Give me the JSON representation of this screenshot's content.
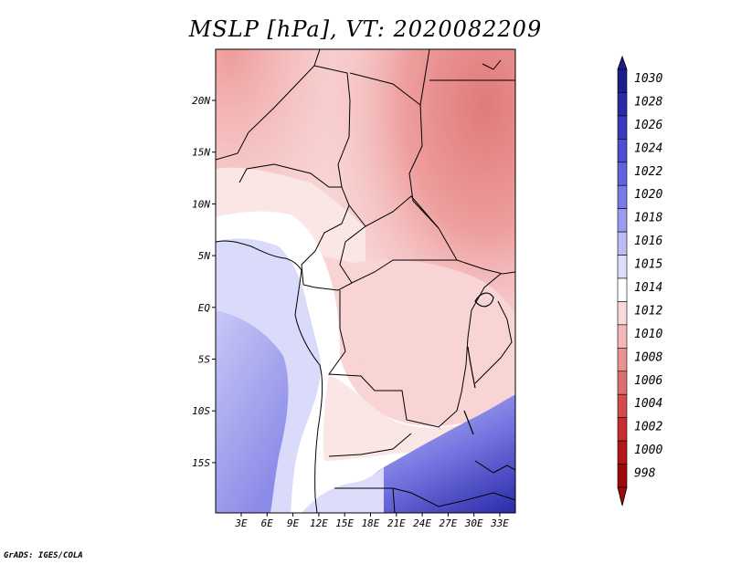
{
  "title": "MSLP [hPa], VT: 2020082209",
  "lat_ticks": [
    "20N",
    "15N",
    "10N",
    "5N",
    "EQ",
    "5S",
    "10S",
    "15S"
  ],
  "lon_ticks": [
    "3E",
    "6E",
    "9E",
    "12E",
    "15E",
    "18E",
    "21E",
    "24E",
    "27E",
    "30E",
    "33E"
  ],
  "colorbar": {
    "levels": [
      "1030",
      "1028",
      "1026",
      "1024",
      "1022",
      "1020",
      "1018",
      "1016",
      "1015",
      "1014",
      "1012",
      "1010",
      "1008",
      "1006",
      "1004",
      "1002",
      "1000",
      "998"
    ],
    "colors": [
      "#1c1c8c",
      "#2b2ba5",
      "#3a3abd",
      "#4e4ed0",
      "#6262dc",
      "#7a7ae6",
      "#9a9aee",
      "#bcbcf4",
      "#dcdcfa",
      "#ffffff",
      "#f9d9d9",
      "#f4b6b6",
      "#ea9292",
      "#df6f6f",
      "#d44b4b",
      "#c62f2f",
      "#b21818",
      "#9e0a0a"
    ]
  },
  "credit": "GrADS: IGES/COLA"
}
